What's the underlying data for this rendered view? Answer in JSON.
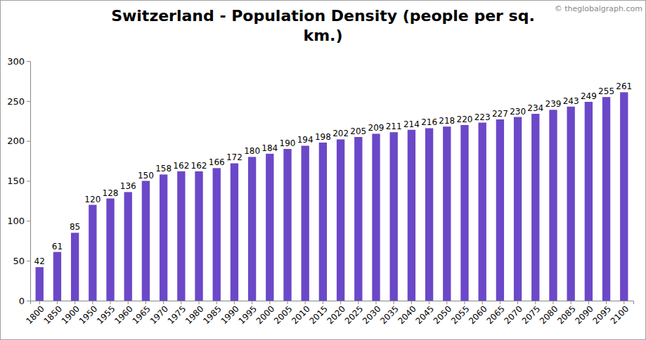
{
  "chart_data": {
    "type": "bar",
    "title": "Switzerland - Population Density (people per sq. km.)",
    "annotations": [
      "© theglobalgraph.com"
    ],
    "categories": [
      "1800",
      "1850",
      "1900",
      "1950",
      "1955",
      "1960",
      "1965",
      "1970",
      "1975",
      "1980",
      "1985",
      "1990",
      "1995",
      "2000",
      "2005",
      "2010",
      "2015",
      "2020",
      "2025",
      "2030",
      "2035",
      "2040",
      "2045",
      "2050",
      "2055",
      "2060",
      "2065",
      "2070",
      "2075",
      "2080",
      "2085",
      "2090",
      "2095",
      "2100"
    ],
    "values": [
      42,
      61,
      85,
      120,
      128,
      136,
      150,
      158,
      162,
      162,
      166,
      172,
      180,
      184,
      190,
      194,
      198,
      202,
      205,
      209,
      211,
      214,
      216,
      218,
      220,
      223,
      227,
      230,
      234,
      239,
      243,
      249,
      255,
      261
    ],
    "color": "#6b48c8",
    "ylim": [
      0,
      300
    ],
    "yticks": [
      0,
      50,
      100,
      150,
      200,
      250,
      300
    ],
    "grid": false,
    "data_labels": true
  }
}
